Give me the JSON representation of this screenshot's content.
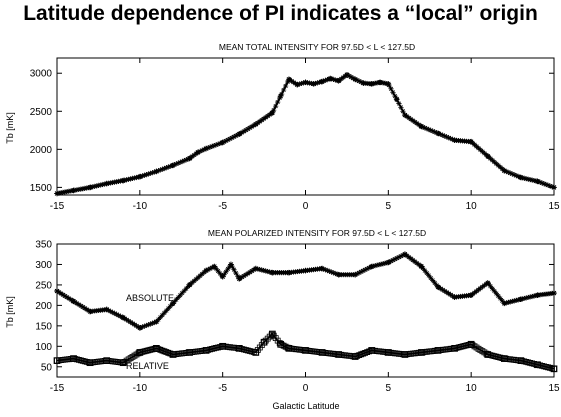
{
  "page": {
    "title": "Latitude dependence of PI indicates a “local” origin"
  },
  "colors": {
    "ink": "#000000",
    "background": "#ffffff"
  },
  "chart_data": [
    {
      "type": "line",
      "title": "MEAN TOTAL INTENSITY FOR 97.5D < L < 127.5D",
      "xlabel": "",
      "ylabel": "Tb [mK]",
      "xlim": [
        -15,
        15
      ],
      "ylim": [
        1400,
        3200
      ],
      "xticks": [
        -15,
        -10,
        -5,
        0,
        5,
        10,
        15
      ],
      "yticks": [
        1500,
        2000,
        2500,
        3000
      ],
      "grid": false,
      "marker": "star",
      "series": [
        {
          "name": "",
          "x": [
            -15,
            -14,
            -13,
            -12,
            -11,
            -10,
            -9,
            -8,
            -7,
            -6.5,
            -6,
            -5,
            -4,
            -3,
            -2,
            -1.5,
            -1,
            -0.5,
            0,
            0.5,
            1,
            1.5,
            2,
            2.5,
            3,
            3.5,
            4,
            4.5,
            5,
            5.5,
            6,
            7,
            8,
            9,
            10,
            11,
            12,
            13,
            14,
            15
          ],
          "y": [
            1420,
            1460,
            1500,
            1550,
            1590,
            1640,
            1710,
            1790,
            1880,
            1960,
            2010,
            2090,
            2200,
            2330,
            2480,
            2700,
            2920,
            2850,
            2880,
            2860,
            2890,
            2930,
            2900,
            2980,
            2920,
            2870,
            2860,
            2880,
            2860,
            2660,
            2450,
            2300,
            2210,
            2120,
            2100,
            1910,
            1720,
            1630,
            1580,
            1500
          ]
        }
      ]
    },
    {
      "type": "line",
      "title": "MEAN POLARIZED INTENSITY FOR 97.5D < L < 127.5D",
      "xlabel": "Galactic Latitude",
      "ylabel": "Tb [mK]",
      "xlim": [
        -15,
        15
      ],
      "ylim": [
        25,
        350
      ],
      "xticks": [
        -15,
        -10,
        -5,
        0,
        5,
        10,
        15
      ],
      "yticks": [
        50,
        100,
        150,
        200,
        250,
        300,
        350
      ],
      "grid": false,
      "annotations": [
        "ABSOLUTE",
        "RELATIVE"
      ],
      "series": [
        {
          "name": "ABSOLUTE",
          "marker": "star",
          "x": [
            -15,
            -14,
            -13,
            -12,
            -11,
            -10,
            -9,
            -8,
            -7,
            -6,
            -5.5,
            -5,
            -4.5,
            -4,
            -3,
            -2,
            -1,
            0,
            1,
            2,
            3,
            4,
            5,
            6,
            7,
            8,
            9,
            10,
            11,
            12,
            13,
            14,
            15
          ],
          "y": [
            235,
            210,
            185,
            190,
            170,
            145,
            160,
            205,
            250,
            285,
            295,
            270,
            300,
            265,
            290,
            280,
            280,
            285,
            290,
            275,
            275,
            295,
            305,
            325,
            295,
            245,
            220,
            225,
            255,
            205,
            215,
            225,
            230
          ]
        },
        {
          "name": "RELATIVE",
          "marker": "square",
          "x": [
            -15,
            -14,
            -13,
            -12,
            -11,
            -10,
            -9,
            -8,
            -7,
            -6,
            -5,
            -4,
            -3,
            -2.5,
            -2,
            -1.5,
            -1,
            0,
            1,
            2,
            3,
            4,
            5,
            6,
            7,
            8,
            9,
            10,
            11,
            12,
            13,
            14,
            15
          ],
          "y": [
            65,
            70,
            60,
            65,
            60,
            85,
            95,
            80,
            85,
            90,
            100,
            95,
            85,
            110,
            130,
            105,
            95,
            90,
            85,
            80,
            75,
            90,
            85,
            80,
            85,
            90,
            95,
            105,
            80,
            70,
            65,
            55,
            45
          ]
        }
      ]
    }
  ]
}
